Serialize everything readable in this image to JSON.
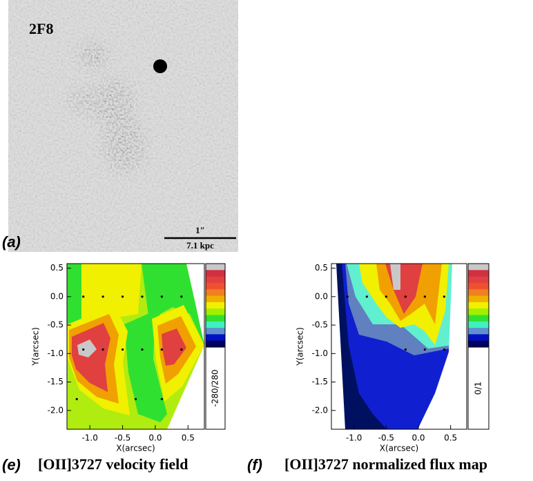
{
  "panel_a": {
    "label": "(a)",
    "name": "2F8",
    "scale_bar_angle": "1″",
    "scale_bar_distance": "7.1 kpc"
  },
  "chart_data": [
    {
      "type": "contour",
      "panel_label": "(e)",
      "title": "[OII]3727 velocity field",
      "x_label": "X(arcsec)",
      "y_label": "Y(arcsec)",
      "xlim": [
        -1.35,
        0.75
      ],
      "ylim": [
        -2.33,
        0.58
      ],
      "xticks": [
        {
          "value": -1,
          "label": "-1.0"
        },
        -0.5,
        {
          "value": 0,
          "label": "0.0"
        },
        0.5
      ],
      "yticks": [
        0.5,
        {
          "value": 0,
          "label": "0.0"
        },
        -0.5,
        {
          "value": -1,
          "label": "-1.0"
        },
        -1.5,
        {
          "value": -2,
          "label": "-2.0"
        }
      ],
      "colorbar_label": "-280/280",
      "colorbar_colors": [
        "#c8c8c8",
        "#d03040",
        "#e04040",
        "#f05030",
        "#f08020",
        "#f0b000",
        "#f0f000",
        "#a0f000",
        "#30e030",
        "#40f0c0",
        "#6090d0",
        "#0010c0",
        "#000060"
      ],
      "points": {
        "x": [
          -1.1,
          -0.8,
          -0.5,
          -0.2,
          0.1,
          0.4,
          -1.1,
          -0.8,
          -0.5,
          -0.2,
          0.1,
          0.4,
          -1.2,
          -0.3,
          0.1
        ],
        "y": [
          0,
          0,
          0,
          0,
          0,
          0,
          -0.93,
          -0.93,
          -0.93,
          -0.93,
          -0.93,
          -0.93,
          -1.8,
          -1.8,
          -1.8
        ]
      }
    },
    {
      "type": "contour",
      "panel_label": "(f)",
      "title": "[OII]3727 normalized flux map",
      "x_label": "X(arcsec)",
      "y_label": "Y(arcsec)",
      "xlim": [
        -1.35,
        0.75
      ],
      "ylim": [
        -2.33,
        0.58
      ],
      "xticks": [
        {
          "value": -1,
          "label": "-1.0"
        },
        -0.5,
        {
          "value": 0,
          "label": "0.0"
        },
        0.5
      ],
      "yticks": [
        0.5,
        {
          "value": 0,
          "label": "0.0"
        },
        -0.5,
        {
          "value": -1,
          "label": "-1.0"
        },
        -1.5,
        {
          "value": -2,
          "label": "-2.0"
        }
      ],
      "colorbar_label": "0/1",
      "colorbar_colors": [
        "#c8c8c8",
        "#d03040",
        "#e04040",
        "#f05030",
        "#f08020",
        "#f0b000",
        "#f0f000",
        "#a0f000",
        "#30e030",
        "#40f0c0",
        "#6090d0",
        "#0010c0",
        "#000060"
      ],
      "points": {
        "x": [
          -1.1,
          -0.8,
          -0.5,
          -0.2,
          0.1,
          0.4,
          -0.2,
          0.1,
          0.4
        ],
        "y": [
          0,
          0,
          0,
          0,
          0,
          0,
          -0.93,
          -0.93,
          -0.93
        ]
      }
    }
  ]
}
